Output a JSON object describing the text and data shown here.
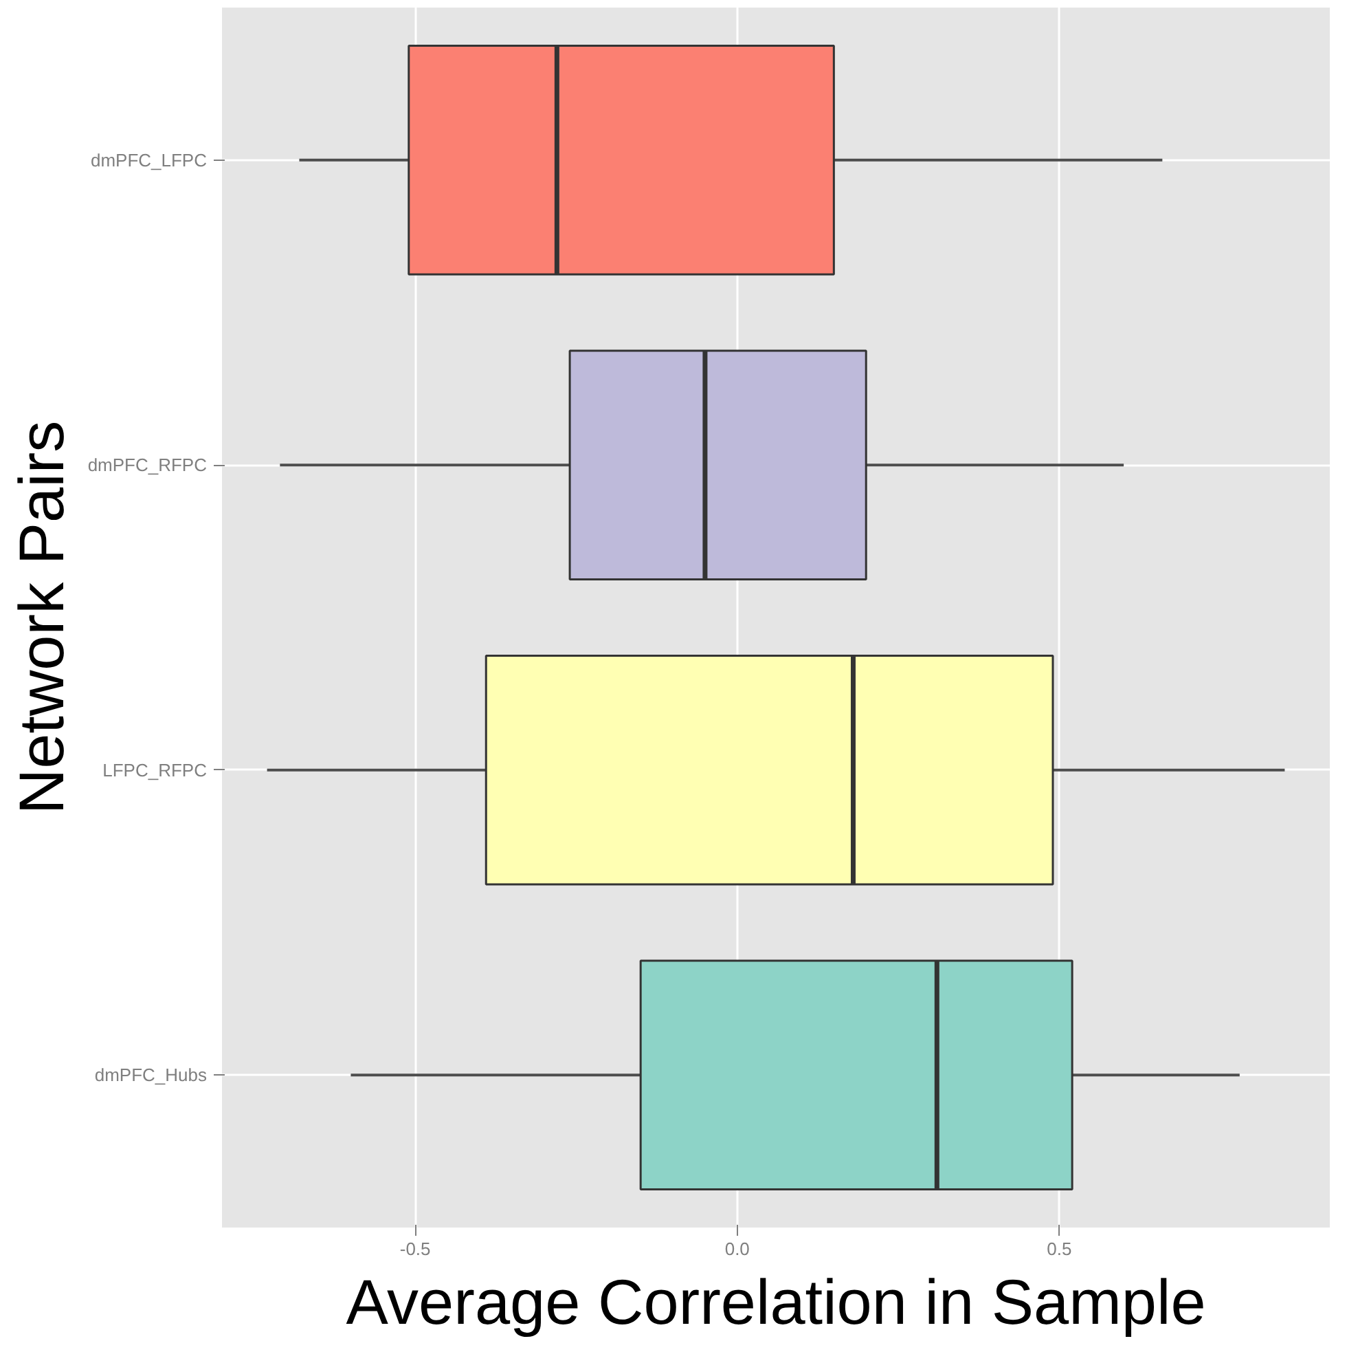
{
  "chart_data": {
    "type": "box",
    "orientation": "horizontal",
    "xlabel": "Average Correlation in Sample",
    "ylabel": "Network Pairs",
    "categories": [
      "dmPFC_LFPC",
      "dmPFC_RFPC",
      "LFPC_RFPC",
      "dmPFC_Hubs"
    ],
    "colors": [
      "#fb8072",
      "#bebada",
      "#ffffb3",
      "#8dd3c7"
    ],
    "boxes": [
      {
        "low": -0.68,
        "q1": -0.51,
        "median": -0.28,
        "q3": 0.15,
        "high": 0.66
      },
      {
        "low": -0.71,
        "q1": -0.26,
        "median": -0.05,
        "q3": 0.2,
        "high": 0.6
      },
      {
        "low": -0.73,
        "q1": -0.39,
        "median": 0.18,
        "q3": 0.49,
        "high": 0.85
      },
      {
        "low": -0.6,
        "q1": -0.15,
        "median": 0.31,
        "q3": 0.52,
        "high": 0.78
      }
    ],
    "xlim": [
      -0.8,
      0.92
    ],
    "xticks": [
      {
        "value": -0.5,
        "label": "-0.5"
      },
      {
        "value": 0,
        "label": "0.0"
      },
      {
        "value": 0.5,
        "label": "0.5"
      }
    ],
    "grid": true
  }
}
